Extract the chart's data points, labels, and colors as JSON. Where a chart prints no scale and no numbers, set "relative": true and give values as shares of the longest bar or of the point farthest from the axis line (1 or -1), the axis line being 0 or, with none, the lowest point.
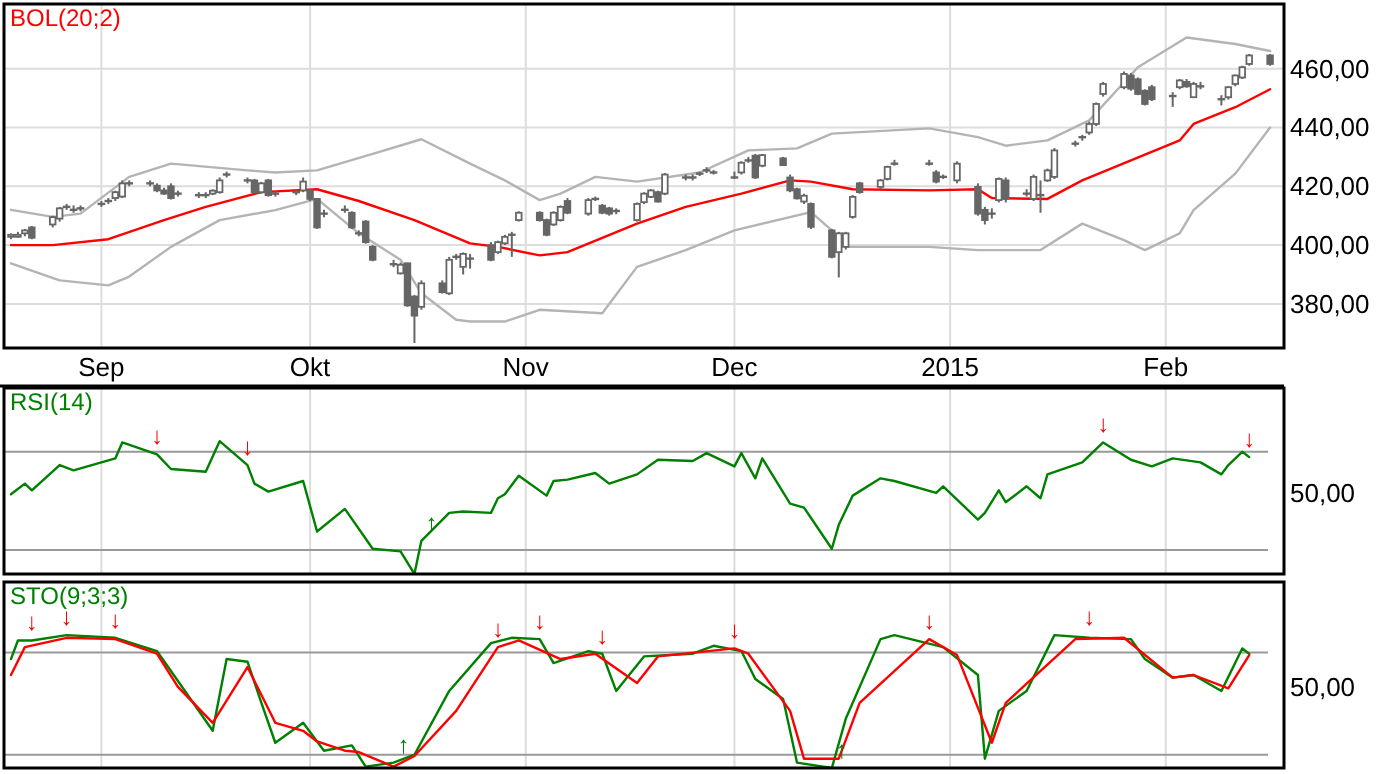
{
  "chart_data": [
    {
      "type": "candlestick",
      "title": "BOL(20;2)",
      "color": "#666666",
      "x": [
        "2014-08-19",
        "2014-08-20",
        "2014-08-21",
        "2014-08-22",
        "2014-08-25",
        "2014-08-26",
        "2014-08-27",
        "2014-08-28",
        "2014-08-29",
        "2014-09-01",
        "2014-09-02",
        "2014-09-03",
        "2014-09-04",
        "2014-09-05",
        "2014-09-08",
        "2014-09-09",
        "2014-09-10",
        "2014-09-11",
        "2014-09-12",
        "2014-09-15",
        "2014-09-16",
        "2014-09-17",
        "2014-09-18",
        "2014-09-19",
        "2014-09-22",
        "2014-09-23",
        "2014-09-24",
        "2014-09-25",
        "2014-09-26",
        "2014-09-29",
        "2014-09-30",
        "2014-10-01",
        "2014-10-02",
        "2014-10-03",
        "2014-10-06",
        "2014-10-07",
        "2014-10-08",
        "2014-10-09",
        "2014-10-10",
        "2014-10-13",
        "2014-10-14",
        "2014-10-15",
        "2014-10-16",
        "2014-10-17",
        "2014-10-20",
        "2014-10-21",
        "2014-10-22",
        "2014-10-23",
        "2014-10-24",
        "2014-10-27",
        "2014-10-28",
        "2014-10-29",
        "2014-10-30",
        "2014-10-31",
        "2014-11-03",
        "2014-11-04",
        "2014-11-05",
        "2014-11-06",
        "2014-11-07",
        "2014-11-10",
        "2014-11-11",
        "2014-11-12",
        "2014-11-13",
        "2014-11-14",
        "2014-11-17",
        "2014-11-18",
        "2014-11-19",
        "2014-11-20",
        "2014-11-21",
        "2014-11-24",
        "2014-11-25",
        "2014-11-26",
        "2014-11-27",
        "2014-11-28",
        "2014-12-01",
        "2014-12-02",
        "2014-12-03",
        "2014-12-04",
        "2014-12-05",
        "2014-12-08",
        "2014-12-09",
        "2014-12-10",
        "2014-12-11",
        "2014-12-12",
        "2014-12-15",
        "2014-12-16",
        "2014-12-17",
        "2014-12-18",
        "2014-12-19",
        "2014-12-22",
        "2014-12-23",
        "2014-12-24",
        "2014-12-29",
        "2014-12-30",
        "2014-12-31",
        "2015-01-02",
        "2015-01-05",
        "2015-01-06",
        "2015-01-07",
        "2015-01-08",
        "2015-01-09",
        "2015-01-12",
        "2015-01-13",
        "2015-01-14",
        "2015-01-15",
        "2015-01-16",
        "2015-01-19",
        "2015-01-20",
        "2015-01-21",
        "2015-01-22",
        "2015-01-23",
        "2015-01-26",
        "2015-01-27",
        "2015-01-28",
        "2015-01-29",
        "2015-01-30",
        "2015-02-02",
        "2015-02-03",
        "2015-02-04",
        "2015-02-05",
        "2015-02-06",
        "2015-02-09",
        "2015-02-10",
        "2015-02-11",
        "2015-02-12",
        "2015-02-13",
        "2015-02-16"
      ],
      "ohlc": [
        [
          403,
          404,
          402,
          403.5
        ],
        [
          403,
          404.5,
          402.5,
          403.5
        ],
        [
          404,
          405.5,
          403,
          405
        ],
        [
          406,
          406.5,
          402,
          402.5
        ],
        [
          407,
          410,
          406,
          409.5
        ],
        [
          409,
          413,
          408,
          412.5
        ],
        [
          413,
          414,
          412,
          413
        ],
        [
          412,
          413.5,
          411,
          412
        ],
        [
          412.5,
          413.5,
          411.5,
          412.5
        ],
        [
          414,
          415,
          413,
          414
        ],
        [
          415,
          416,
          414,
          415
        ],
        [
          416,
          418.5,
          415,
          418
        ],
        [
          416.5,
          422,
          416,
          421
        ],
        [
          421,
          422,
          420,
          421
        ],
        [
          421,
          422,
          420,
          421
        ],
        [
          420.2,
          421,
          418,
          418.6
        ],
        [
          418.6,
          419.5,
          417,
          417.5
        ],
        [
          420,
          421,
          415.5,
          416
        ],
        [
          417.5,
          418.5,
          416.5,
          417.5
        ],
        [
          417,
          418,
          416,
          417
        ],
        [
          417,
          418,
          416,
          417
        ],
        [
          417.5,
          419,
          417,
          418.5
        ],
        [
          418,
          423,
          417.5,
          422
        ],
        [
          424,
          425,
          423,
          424
        ],
        [
          422,
          423,
          421,
          422
        ],
        [
          422,
          422.5,
          417.5,
          418
        ],
        [
          418,
          421.5,
          417.5,
          421
        ],
        [
          422,
          422.5,
          416.5,
          417
        ],
        [
          417.5,
          418.5,
          416.5,
          417.5
        ],
        [
          418,
          419,
          417,
          418
        ],
        [
          418.6,
          423,
          418,
          421.6
        ],
        [
          418.6,
          419,
          415,
          415.7
        ],
        [
          415.7,
          416,
          405.5,
          406
        ],
        [
          410.7,
          412,
          409.5,
          410.7
        ],
        [
          412,
          413.5,
          411,
          412
        ],
        [
          411,
          411.5,
          405.5,
          406
        ],
        [
          404,
          405,
          403,
          404
        ],
        [
          408,
          408.5,
          400.5,
          401
        ],
        [
          399.4,
          400,
          394.5,
          395
        ],
        [
          393.5,
          395,
          392.5,
          393.5
        ],
        [
          390.4,
          394,
          390,
          393.3
        ],
        [
          393.8,
          394,
          379,
          379.5
        ],
        [
          382.5,
          383,
          366.7,
          376
        ],
        [
          379,
          388,
          378,
          387
        ],
        [
          387,
          388,
          383.5,
          384
        ],
        [
          383.6,
          396,
          383,
          395
        ],
        [
          396,
          397,
          395,
          396
        ],
        [
          392.6,
          397.5,
          390,
          397
        ],
        [
          395.4,
          397,
          392,
          395.4
        ],
        [
          400,
          401,
          394.5,
          395
        ],
        [
          397.6,
          401.5,
          397,
          401
        ],
        [
          400.6,
          403.5,
          400,
          402.8
        ],
        [
          403.5,
          404.5,
          396,
          403.5
        ],
        [
          408.5,
          411.5,
          408,
          411
        ],
        [
          411,
          411.5,
          408,
          408.5
        ],
        [
          408.5,
          409,
          403,
          403.5
        ],
        [
          407,
          411.5,
          406.5,
          411
        ],
        [
          408.5,
          413.5,
          408,
          413
        ],
        [
          415,
          416,
          410.5,
          411
        ],
        [
          410.7,
          416,
          410,
          415.3
        ],
        [
          415.7,
          416.5,
          415,
          415.7
        ],
        [
          413.4,
          414,
          410.5,
          411
        ],
        [
          412.5,
          413,
          410,
          410.7
        ],
        [
          411.6,
          412.5,
          410.5,
          411.6
        ],
        [
          408.5,
          414.5,
          408,
          414
        ],
        [
          414.6,
          418,
          414,
          417.5
        ],
        [
          416.4,
          419,
          416,
          418.6
        ],
        [
          418,
          418.5,
          414.5,
          414.8
        ],
        [
          417.5,
          424.5,
          417,
          424
        ],
        [
          423,
          424,
          422,
          423
        ],
        [
          423,
          424,
          422,
          423
        ],
        [
          424.3,
          425,
          423.5,
          424.3
        ],
        [
          425.4,
          426.5,
          424.5,
          425.4
        ],
        [
          424.7,
          425.5,
          424,
          424.7
        ],
        [
          423,
          425,
          422.5,
          423
        ],
        [
          424.7,
          428.5,
          424,
          428
        ],
        [
          428.8,
          430,
          428,
          428.8
        ],
        [
          430.4,
          431,
          422.5,
          423
        ],
        [
          427,
          431,
          426.5,
          430.6
        ],
        [
          429.5,
          430,
          427,
          427.2
        ],
        [
          423,
          424,
          418,
          418.6
        ],
        [
          419,
          419.5,
          415.5,
          415.9
        ],
        [
          414.8,
          417.5,
          414,
          416.8
        ],
        [
          414,
          414.5,
          405.5,
          406.2
        ],
        [
          405,
          405.5,
          395.5,
          396
        ],
        [
          397.6,
          404.5,
          389,
          404
        ],
        [
          399.4,
          404.5,
          398.5,
          404
        ],
        [
          409.6,
          417,
          409,
          416.4
        ],
        [
          421,
          421.5,
          417.5,
          418
        ],
        [
          419.8,
          422.5,
          419,
          422
        ],
        [
          422.5,
          427,
          422,
          426.6
        ],
        [
          427.7,
          429,
          427,
          427.7
        ],
        [
          427.7,
          429,
          427,
          427.7
        ],
        [
          424.7,
          425.5,
          421,
          421.6
        ],
        [
          423.2,
          424,
          422.5,
          423.2
        ],
        [
          422,
          428.5,
          421,
          427.7
        ],
        [
          419.8,
          421,
          410,
          410.7
        ],
        [
          412,
          413,
          407,
          408.5
        ],
        [
          410.7,
          412.5,
          409,
          410.7
        ],
        [
          415.3,
          423,
          414.5,
          422.5
        ],
        [
          422,
          423,
          414.5,
          415.7
        ],
        [
          417.5,
          419,
          416.5,
          417.5
        ],
        [
          415.7,
          424,
          415,
          423.2
        ],
        [
          417,
          422,
          411,
          417
        ],
        [
          422,
          426,
          421.5,
          425.4
        ],
        [
          423.2,
          433,
          422.5,
          432.2
        ],
        [
          434.5,
          435.5,
          433.5,
          434.5
        ],
        [
          436.7,
          437.5,
          435.5,
          436.7
        ],
        [
          438.3,
          442,
          437.5,
          441.2
        ],
        [
          441.2,
          448.5,
          440.5,
          448
        ],
        [
          451.4,
          455.5,
          450.5,
          454.8
        ],
        [
          453.7,
          459,
          453,
          458.2
        ],
        [
          457.7,
          458.5,
          452.5,
          453.2
        ],
        [
          456.4,
          457,
          451,
          451.4
        ],
        [
          452.5,
          453,
          447.5,
          448
        ],
        [
          453.7,
          454.5,
          449,
          449.6
        ],
        [
          450.7,
          452,
          447,
          450.7
        ],
        [
          453.7,
          456.5,
          453,
          456
        ],
        [
          455.5,
          456.5,
          453.5,
          454
        ],
        [
          450.3,
          455.5,
          450,
          454.8
        ],
        [
          454,
          455.5,
          453,
          454
        ],
        [
          449.6,
          451,
          447.5,
          449.6
        ],
        [
          450.3,
          454,
          449.5,
          453.7
        ],
        [
          454.8,
          458,
          454,
          457.7
        ],
        [
          457,
          461,
          456.5,
          460.5
        ],
        [
          461.6,
          465,
          461,
          464.5
        ],
        [
          464.5,
          465,
          461,
          461.6
        ]
      ],
      "series": [
        {
          "type": "line",
          "color": "#ff0000",
          "x": [
            "2014-08-19",
            "2014-08-25",
            "2014-09-02",
            "2014-09-10",
            "2014-09-16",
            "2014-09-24",
            "2014-10-02",
            "2014-10-08",
            "2014-10-16",
            "2014-10-24",
            "2014-10-28",
            "2014-11-03",
            "2014-11-07",
            "2014-11-17",
            "2014-11-24",
            "2014-12-02",
            "2014-12-09",
            "2014-12-12",
            "2014-12-18",
            "2014-12-29",
            "2015-01-05",
            "2015-01-07",
            "2015-01-15",
            "2015-01-20",
            "2015-01-27",
            "2015-02-03",
            "2015-02-05",
            "2015-02-11",
            "2015-02-16"
          ],
          "values": [
            400,
            400,
            402,
            408.5,
            413,
            418,
            419,
            415,
            408.5,
            400.6,
            399.4,
            396.5,
            397.6,
            407.3,
            413,
            417.5,
            422,
            421.6,
            419,
            418.6,
            419,
            416,
            415.7,
            422,
            428.8,
            435.6,
            441.2,
            446.9,
            453
          ]
        },
        {
          "type": "line",
          "color": "#b4b4b4",
          "x": [
            "2014-08-19",
            "2014-08-25",
            "2014-08-29",
            "2014-09-05",
            "2014-09-11",
            "2014-09-22",
            "2014-09-26",
            "2014-10-02",
            "2014-10-10",
            "2014-10-17",
            "2014-10-24",
            "2014-10-29",
            "2014-11-03",
            "2014-11-06",
            "2014-11-11",
            "2014-11-17",
            "2014-11-26",
            "2014-12-03",
            "2014-12-10",
            "2014-12-15",
            "2014-12-29",
            "2015-01-05",
            "2015-01-09",
            "2015-01-15",
            "2015-01-21",
            "2015-01-28",
            "2015-02-04",
            "2015-02-11",
            "2015-02-16"
          ],
          "values": [
            412,
            409.6,
            410.7,
            423.2,
            427.7,
            425.4,
            424.7,
            425.4,
            431,
            436,
            427.7,
            422,
            415.3,
            417.5,
            423.2,
            421.6,
            424.7,
            432.2,
            432.9,
            437.9,
            439.7,
            436.7,
            433.8,
            435.6,
            442.4,
            460.5,
            470.6,
            468.4,
            466
          ]
        },
        {
          "type": "line",
          "color": "#b4b4b4",
          "x": [
            "2014-08-19",
            "2014-08-26",
            "2014-09-02",
            "2014-09-05",
            "2014-09-11",
            "2014-09-18",
            "2014-09-26",
            "2014-10-02",
            "2014-10-08",
            "2014-10-14",
            "2014-10-17",
            "2014-10-22",
            "2014-10-24",
            "2014-10-29",
            "2014-11-03",
            "2014-11-12",
            "2014-11-17",
            "2014-11-24",
            "2014-12-01",
            "2014-12-12",
            "2014-12-15",
            "2014-12-17",
            "2014-12-29",
            "2015-01-05",
            "2015-01-14",
            "2015-01-20",
            "2015-01-26",
            "2015-01-29",
            "2015-02-03",
            "2015-02-05",
            "2015-02-11",
            "2015-02-16"
          ],
          "values": [
            393.8,
            388,
            386.3,
            389.3,
            399.4,
            408.5,
            411.9,
            415.7,
            404,
            395,
            383.6,
            374.6,
            374,
            374,
            378,
            376.8,
            392.6,
            398.3,
            405,
            411.2,
            405,
            399.4,
            399.4,
            398.3,
            398.3,
            407.3,
            401.7,
            398.3,
            404,
            411.9,
            424.3,
            440
          ]
        }
      ],
      "xlim": [
        "2014-08-18",
        "2015-02-18"
      ],
      "xticks": [
        {
          "value": "2014-09-01",
          "label": "Sep"
        },
        {
          "value": "2014-10-01",
          "label": "Okt"
        },
        {
          "value": "2014-11-01",
          "label": "Nov"
        },
        {
          "value": "2014-12-01",
          "label": "Dec"
        },
        {
          "value": "2015-01-01",
          "label": "2015"
        },
        {
          "value": "2015-02-01",
          "label": "Feb"
        }
      ],
      "ylim": [
        365,
        482
      ],
      "yticks": [
        {
          "value": 380,
          "label": "380,00"
        },
        {
          "value": 400,
          "label": "400,00"
        },
        {
          "value": 420,
          "label": "420,00"
        },
        {
          "value": 440,
          "label": "440,00"
        },
        {
          "value": 460,
          "label": "460,00"
        }
      ],
      "grid": true
    },
    {
      "type": "line",
      "title": "RSI(14)",
      "relative": true,
      "series": [
        {
          "color": "#008000",
          "x": [
            "2014-08-19",
            "2014-08-21",
            "2014-08-22",
            "2014-08-26",
            "2014-08-28",
            "2014-09-03",
            "2014-09-04",
            "2014-09-09",
            "2014-09-11",
            "2014-09-16",
            "2014-09-18",
            "2014-09-22",
            "2014-09-23",
            "2014-09-25",
            "2014-09-30",
            "2014-10-02",
            "2014-10-06",
            "2014-10-10",
            "2014-10-14",
            "2014-10-16",
            "2014-10-17",
            "2014-10-21",
            "2014-10-23",
            "2014-10-27",
            "2014-10-28",
            "2014-10-29",
            "2014-10-31",
            "2014-11-04",
            "2014-11-05",
            "2014-11-07",
            "2014-11-11",
            "2014-11-13",
            "2014-11-17",
            "2014-11-20",
            "2014-11-25",
            "2014-11-27",
            "2014-12-01",
            "2014-12-02",
            "2014-12-04",
            "2014-12-05",
            "2014-12-09",
            "2014-12-11",
            "2014-12-15",
            "2014-12-16",
            "2014-12-18",
            "2014-12-22",
            "2014-12-24",
            "2014-12-30",
            "2014-12-31",
            "2015-01-05",
            "2015-01-06",
            "2015-01-08",
            "2015-01-09",
            "2015-01-12",
            "2015-01-14",
            "2015-01-15",
            "2015-01-20",
            "2015-01-23",
            "2015-01-27",
            "2015-01-30",
            "2015-02-02",
            "2015-02-06",
            "2015-02-09",
            "2015-02-10",
            "2015-02-12",
            "2015-02-13"
          ],
          "values": [
            0.6,
            0.68,
            0.63,
            0.82,
            0.78,
            0.87,
            0.99,
            0.9,
            0.79,
            0.77,
            1,
            0.82,
            0.68,
            0.62,
            0.7,
            0.32,
            0.49,
            0.19,
            0.17,
            0,
            0.25,
            0.46,
            0.47,
            0.46,
            0.57,
            0.6,
            0.74,
            0.59,
            0.7,
            0.71,
            0.76,
            0.68,
            0.75,
            0.86,
            0.85,
            0.91,
            0.81,
            0.91,
            0.72,
            0.87,
            0.53,
            0.5,
            0.19,
            0.37,
            0.59,
            0.72,
            0.7,
            0.61,
            0.66,
            0.41,
            0.46,
            0.63,
            0.54,
            0.66,
            0.57,
            0.75,
            0.84,
            0.99,
            0.86,
            0.81,
            0.87,
            0.84,
            0.75,
            0.82,
            0.92,
            0.88
          ]
        }
      ],
      "ref_lines": [
        {
          "axis": "y",
          "value": 0.92,
          "color": "#999999"
        },
        {
          "axis": "y",
          "value": 0.18,
          "color": "#999999"
        }
      ],
      "annotations": [
        "50,00",
        {
          "text": "↓",
          "x": "2014-09-09",
          "y": 0.9
        },
        {
          "text": "↓",
          "x": "2014-09-22",
          "y": 0.82
        },
        {
          "text": "↑",
          "x": "2014-10-17",
          "y": 0.25
        },
        {
          "text": "↓",
          "x": "2015-01-23",
          "y": 0.99
        },
        {
          "text": "↓",
          "x": "2015-02-13",
          "y": 0.88
        }
      ],
      "xlim": [
        "2014-08-18",
        "2015-02-18"
      ],
      "xticks": [
        {
          "value": "2014-09-01",
          "label": null
        },
        {
          "value": "2014-10-01",
          "label": null
        },
        {
          "value": "2014-11-01",
          "label": null
        },
        {
          "value": "2014-12-01",
          "label": null
        },
        {
          "value": "2015-01-01",
          "label": null
        },
        {
          "value": "2015-02-01",
          "label": null
        }
      ],
      "tick_labels": false,
      "grid": "x"
    },
    {
      "type": "line",
      "title": "STO(9;3;3)",
      "relative": true,
      "series": [
        {
          "color": "#008000",
          "x": [
            "2014-08-19",
            "2014-08-20",
            "2014-08-22",
            "2014-08-27",
            "2014-09-03",
            "2014-09-09",
            "2014-09-11",
            "2014-09-17",
            "2014-09-19",
            "2014-09-22",
            "2014-09-24",
            "2014-09-26",
            "2014-09-30",
            "2014-10-03",
            "2014-10-07",
            "2014-10-09",
            "2014-10-13",
            "2014-10-16",
            "2014-10-21",
            "2014-10-27",
            "2014-10-30",
            "2014-11-03",
            "2014-11-05",
            "2014-11-10",
            "2014-11-12",
            "2014-11-14",
            "2014-11-18",
            "2014-11-25",
            "2014-11-28",
            "2014-12-02",
            "2014-12-04",
            "2014-12-08",
            "2014-12-10",
            "2014-12-15",
            "2014-12-17",
            "2014-12-22",
            "2014-12-24",
            "2014-12-31",
            "2015-01-05",
            "2015-01-06",
            "2015-01-08",
            "2015-01-12",
            "2015-01-16",
            "2015-01-21",
            "2015-01-27",
            "2015-01-29",
            "2015-02-02",
            "2015-02-05",
            "2015-02-09",
            "2015-02-12",
            "2015-02-13"
          ],
          "values": [
            0.82,
            0.96,
            0.96,
            1,
            0.98,
            0.88,
            0.73,
            0.28,
            0.82,
            0.8,
            0.49,
            0.19,
            0.34,
            0.13,
            0.17,
            0.01,
            0.04,
            0.1,
            0.58,
            0.94,
            0.98,
            0.97,
            0.79,
            0.88,
            0.86,
            0.58,
            0.84,
            0.86,
            0.92,
            0.88,
            0.67,
            0.52,
            0.04,
            0,
            0.37,
            0.97,
            1,
            0.91,
            0.7,
            0.07,
            0.43,
            0.58,
            1,
            0.98,
            0.97,
            0.82,
            0.68,
            0.7,
            0.58,
            0.9,
            0.86
          ]
        },
        {
          "color": "#ff0000",
          "x": [
            "2014-08-19",
            "2014-08-21",
            "2014-08-27",
            "2014-09-03",
            "2014-09-09",
            "2014-09-12",
            "2014-09-17",
            "2014-09-22",
            "2014-09-26",
            "2014-09-30",
            "2014-10-02",
            "2014-10-06",
            "2014-10-08",
            "2014-10-13",
            "2014-10-16",
            "2014-10-22",
            "2014-10-28",
            "2014-10-31",
            "2014-11-06",
            "2014-11-11",
            "2014-11-17",
            "2014-11-20",
            "2014-12-01",
            "2014-12-03",
            "2014-12-09",
            "2014-12-11",
            "2014-12-16",
            "2014-12-19",
            "2014-12-29",
            "2015-01-02",
            "2015-01-07",
            "2015-01-09",
            "2015-01-19",
            "2015-01-26",
            "2015-02-02",
            "2015-02-05",
            "2015-02-10",
            "2015-02-13"
          ],
          "values": [
            0.7,
            0.91,
            0.98,
            0.97,
            0.86,
            0.61,
            0.34,
            0.76,
            0.34,
            0.28,
            0.2,
            0.13,
            0.12,
            0.01,
            0.09,
            0.43,
            0.91,
            0.96,
            0.82,
            0.86,
            0.64,
            0.84,
            0.9,
            0.86,
            0.43,
            0.07,
            0.07,
            0.49,
            0.97,
            0.85,
            0.19,
            0.49,
            0.97,
            0.98,
            0.68,
            0.7,
            0.6,
            0.85
          ]
        }
      ],
      "ref_lines": [
        {
          "axis": "y",
          "value": 0.87,
          "color": "#999999"
        },
        {
          "axis": "y",
          "value": 0.1,
          "color": "#999999"
        }
      ],
      "annotations": [
        "50,00",
        {
          "text": "↓",
          "x": "2014-08-22",
          "y": 0.96
        },
        {
          "text": "↓",
          "x": "2014-08-27",
          "y": 1
        },
        {
          "text": "↓",
          "x": "2014-09-03",
          "y": 0.98
        },
        {
          "text": "↓",
          "x": "2014-10-28",
          "y": 0.91
        },
        {
          "text": "↓",
          "x": "2014-11-03",
          "y": 0.97
        },
        {
          "text": "↓",
          "x": "2014-11-12",
          "y": 0.86
        },
        {
          "text": "↓",
          "x": "2014-12-01",
          "y": 0.9
        },
        {
          "text": "↓",
          "x": "2014-12-29",
          "y": 0.97
        },
        {
          "text": "↓",
          "x": "2015-01-21",
          "y": 1
        },
        {
          "text": "↑",
          "x": "2014-10-13",
          "y": 0.04
        },
        {
          "text": "↑",
          "x": "2014-12-15",
          "y": 0
        }
      ],
      "xlim": [
        "2014-08-18",
        "2015-02-18"
      ],
      "xticks": [
        {
          "value": "2014-09-01",
          "label": null
        },
        {
          "value": "2014-10-01",
          "label": null
        },
        {
          "value": "2014-11-01",
          "label": null
        },
        {
          "value": "2014-12-01",
          "label": null
        },
        {
          "value": "2015-01-01",
          "label": null
        },
        {
          "value": "2015-02-01",
          "label": null
        }
      ],
      "tick_labels": false,
      "grid": "x"
    }
  ]
}
